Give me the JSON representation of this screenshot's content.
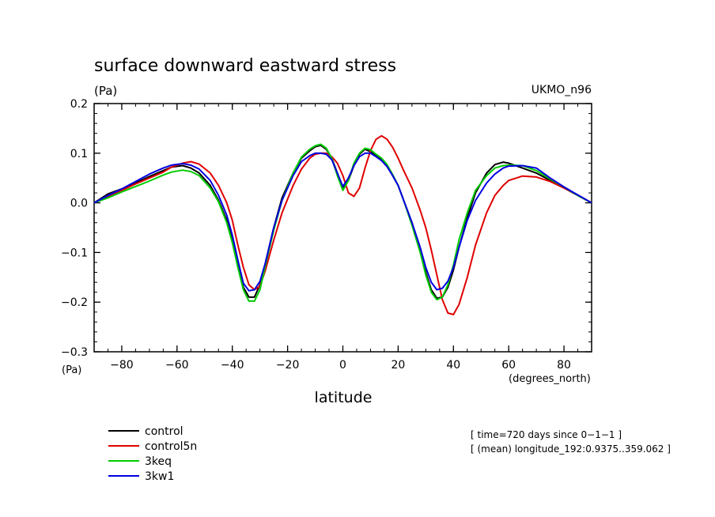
{
  "chart_data": {
    "type": "line",
    "title": "surface downward eastward stress",
    "units_top": "(Pa)",
    "units_bottom": "(Pa)",
    "model_label": "UKMO_n96",
    "xlabel": "latitude",
    "xunits": "(degrees_north)",
    "xlim": [
      -90,
      90
    ],
    "ylim": [
      -0.3,
      0.2
    ],
    "xticks": [
      -80,
      -60,
      -40,
      -20,
      0,
      20,
      40,
      60,
      80
    ],
    "xtick_labels": [
      "−80",
      "−60",
      "−40",
      "−20",
      "0",
      "20",
      "40",
      "60",
      "80"
    ],
    "yticks": [
      -0.3,
      -0.2,
      -0.1,
      0.0,
      0.1,
      0.2
    ],
    "ytick_labels": [
      "−0.3",
      "−0.2",
      "−0.1",
      "0.0",
      "0.1",
      "0.2"
    ],
    "grid": false,
    "legend_position": "bottom-left",
    "info_lines": [
      "[ time=720 days since 0−1−1 ]",
      "[ (mean) longitude_192:0.9375..359.062 ]"
    ],
    "series": [
      {
        "name": "control",
        "color": "#000000",
        "x": [
          -90,
          -85,
          -80,
          -75,
          -70,
          -65,
          -62,
          -58,
          -55,
          -52,
          -48,
          -45,
          -42,
          -40,
          -38,
          -36,
          -34,
          -32,
          -30,
          -28,
          -25,
          -22,
          -18,
          -15,
          -12,
          -10,
          -8,
          -6,
          -4,
          -2,
          0,
          2,
          4,
          6,
          8,
          10,
          12,
          14,
          16,
          18,
          20,
          22,
          25,
          28,
          30,
          32,
          34,
          36,
          38,
          40,
          42,
          45,
          48,
          52,
          55,
          58,
          60,
          65,
          70,
          75,
          80,
          85,
          90
        ],
        "y": [
          0.0,
          0.018,
          0.028,
          0.04,
          0.053,
          0.065,
          0.072,
          0.075,
          0.07,
          0.06,
          0.035,
          0.005,
          -0.035,
          -0.075,
          -0.125,
          -0.17,
          -0.19,
          -0.19,
          -0.165,
          -0.12,
          -0.05,
          0.01,
          0.06,
          0.09,
          0.105,
          0.113,
          0.116,
          0.108,
          0.09,
          0.06,
          0.03,
          0.045,
          0.075,
          0.098,
          0.108,
          0.103,
          0.095,
          0.088,
          0.075,
          0.055,
          0.035,
          0.005,
          -0.04,
          -0.095,
          -0.14,
          -0.175,
          -0.192,
          -0.19,
          -0.17,
          -0.135,
          -0.09,
          -0.03,
          0.02,
          0.06,
          0.077,
          0.082,
          0.08,
          0.07,
          0.06,
          0.045,
          0.03,
          0.015,
          0.0
        ]
      },
      {
        "name": "control5n",
        "color": "#e00000",
        "x": [
          -90,
          -85,
          -80,
          -75,
          -70,
          -65,
          -62,
          -58,
          -55,
          -52,
          -48,
          -45,
          -42,
          -40,
          -38,
          -36,
          -34,
          -32,
          -30,
          -28,
          -25,
          -22,
          -18,
          -15,
          -12,
          -10,
          -8,
          -6,
          -4,
          -2,
          0,
          2,
          4,
          6,
          8,
          10,
          12,
          14,
          16,
          18,
          20,
          22,
          25,
          28,
          30,
          32,
          34,
          36,
          38,
          40,
          42,
          45,
          48,
          52,
          55,
          58,
          60,
          65,
          70,
          75,
          80,
          85,
          90
        ],
        "y": [
          0.0,
          0.012,
          0.025,
          0.038,
          0.05,
          0.062,
          0.072,
          0.08,
          0.083,
          0.078,
          0.06,
          0.035,
          0.0,
          -0.035,
          -0.085,
          -0.13,
          -0.165,
          -0.175,
          -0.168,
          -0.135,
          -0.075,
          -0.02,
          0.035,
          0.068,
          0.09,
          0.098,
          0.1,
          0.1,
          0.093,
          0.08,
          0.055,
          0.02,
          0.013,
          0.03,
          0.07,
          0.105,
          0.128,
          0.135,
          0.128,
          0.112,
          0.09,
          0.065,
          0.03,
          -0.015,
          -0.05,
          -0.095,
          -0.145,
          -0.195,
          -0.222,
          -0.225,
          -0.205,
          -0.15,
          -0.085,
          -0.02,
          0.015,
          0.035,
          0.045,
          0.054,
          0.052,
          0.043,
          0.03,
          0.016,
          0.0
        ]
      },
      {
        "name": "3keq",
        "color": "#00cc00",
        "x": [
          -90,
          -85,
          -80,
          -75,
          -70,
          -65,
          -62,
          -58,
          -55,
          -52,
          -48,
          -45,
          -42,
          -40,
          -38,
          -36,
          -34,
          -32,
          -30,
          -28,
          -25,
          -22,
          -18,
          -15,
          -12,
          -10,
          -8,
          -6,
          -4,
          -2,
          0,
          2,
          4,
          6,
          8,
          10,
          12,
          14,
          16,
          18,
          20,
          22,
          25,
          28,
          30,
          32,
          34,
          36,
          38,
          40,
          42,
          45,
          48,
          52,
          55,
          58,
          60,
          65,
          70,
          75,
          80,
          85,
          90
        ],
        "y": [
          0.0,
          0.01,
          0.022,
          0.033,
          0.044,
          0.056,
          0.062,
          0.066,
          0.063,
          0.055,
          0.03,
          0.002,
          -0.04,
          -0.08,
          -0.13,
          -0.175,
          -0.198,
          -0.198,
          -0.175,
          -0.125,
          -0.055,
          0.005,
          0.06,
          0.092,
          0.108,
          0.115,
          0.118,
          0.11,
          0.09,
          0.055,
          0.025,
          0.045,
          0.08,
          0.1,
          0.11,
          0.107,
          0.098,
          0.09,
          0.077,
          0.057,
          0.035,
          0.005,
          -0.045,
          -0.1,
          -0.145,
          -0.18,
          -0.195,
          -0.19,
          -0.165,
          -0.125,
          -0.075,
          -0.02,
          0.025,
          0.055,
          0.07,
          0.075,
          0.076,
          0.075,
          0.065,
          0.048,
          0.032,
          0.015,
          0.0
        ]
      },
      {
        "name": "3kw1",
        "color": "#0000e0",
        "x": [
          -90,
          -85,
          -80,
          -75,
          -70,
          -65,
          -62,
          -58,
          -55,
          -52,
          -48,
          -45,
          -42,
          -40,
          -38,
          -36,
          -34,
          -32,
          -30,
          -28,
          -25,
          -22,
          -18,
          -15,
          -12,
          -10,
          -8,
          -6,
          -4,
          -2,
          0,
          2,
          4,
          6,
          8,
          10,
          12,
          14,
          16,
          18,
          20,
          22,
          25,
          28,
          30,
          32,
          34,
          36,
          38,
          40,
          42,
          45,
          48,
          52,
          55,
          58,
          60,
          65,
          70,
          75,
          80,
          85,
          90
        ],
        "y": [
          0.0,
          0.015,
          0.028,
          0.043,
          0.058,
          0.07,
          0.076,
          0.079,
          0.076,
          0.068,
          0.045,
          0.015,
          -0.025,
          -0.065,
          -0.115,
          -0.162,
          -0.177,
          -0.175,
          -0.158,
          -0.12,
          -0.05,
          0.005,
          0.055,
          0.083,
          0.095,
          0.1,
          0.1,
          0.098,
          0.087,
          0.06,
          0.033,
          0.05,
          0.075,
          0.093,
          0.1,
          0.1,
          0.093,
          0.085,
          0.073,
          0.055,
          0.035,
          0.005,
          -0.04,
          -0.09,
          -0.13,
          -0.16,
          -0.175,
          -0.172,
          -0.158,
          -0.13,
          -0.09,
          -0.035,
          0.005,
          0.04,
          0.058,
          0.07,
          0.074,
          0.075,
          0.07,
          0.05,
          0.032,
          0.016,
          0.0
        ]
      }
    ]
  }
}
